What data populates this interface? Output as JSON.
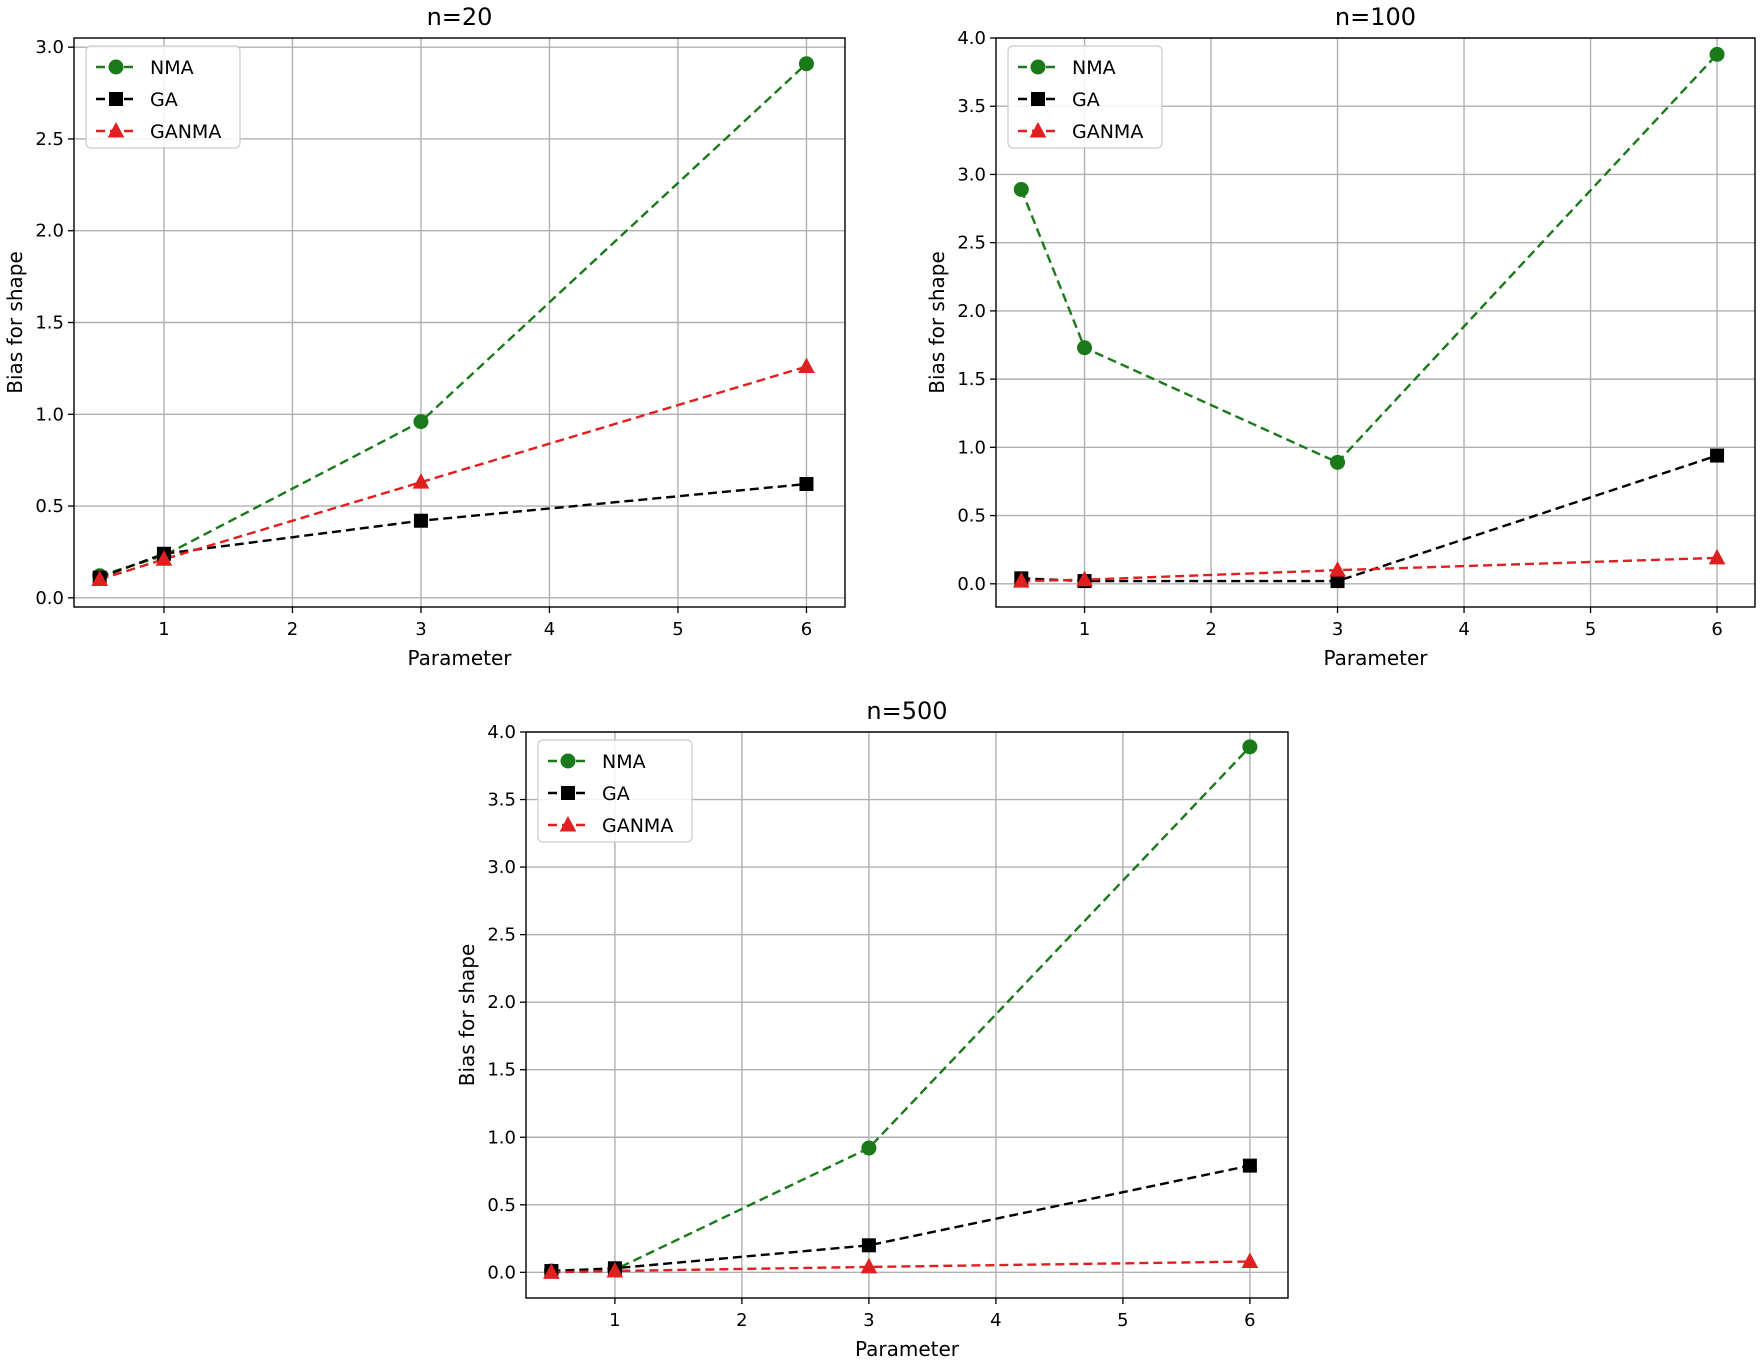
{
  "chart_data": [
    {
      "type": "line",
      "title": "n=20",
      "xlabel": "Parameter",
      "ylabel": "Bias for shape",
      "xlim": [
        0.3,
        6.3
      ],
      "ylim": [
        -0.05,
        3.05
      ],
      "xticks": [
        1,
        2,
        3,
        4,
        5,
        6
      ],
      "yticks": [
        "0.0",
        "0.5",
        "1.0",
        "1.5",
        "2.0",
        "2.5",
        "3.0"
      ],
      "grid": true,
      "legend_position": "top-left",
      "x": [
        0.5,
        1,
        3,
        6
      ],
      "series": [
        {
          "name": "NMA",
          "color": "#1a7a1a",
          "marker": "circle",
          "values": [
            0.12,
            0.23,
            0.96,
            2.91
          ]
        },
        {
          "name": "GA",
          "color": "#000000",
          "marker": "square",
          "values": [
            0.11,
            0.24,
            0.42,
            0.62
          ]
        },
        {
          "name": "GANMA",
          "color": "#e02020",
          "marker": "triangle",
          "values": [
            0.1,
            0.21,
            0.63,
            1.26
          ]
        }
      ]
    },
    {
      "type": "line",
      "title": "n=100",
      "xlabel": "Parameter",
      "ylabel": "Bias for shape",
      "xlim": [
        0.3,
        6.3
      ],
      "ylim": [
        -0.17,
        4.0
      ],
      "xticks": [
        1,
        2,
        3,
        4,
        5,
        6
      ],
      "yticks": [
        "0.0",
        "0.5",
        "1.0",
        "1.5",
        "2.0",
        "2.5",
        "3.0",
        "3.5",
        "4.0"
      ],
      "grid": true,
      "legend_position": "top-left",
      "x": [
        0.5,
        1,
        3,
        6
      ],
      "series": [
        {
          "name": "NMA",
          "color": "#1a7a1a",
          "marker": "circle",
          "values": [
            2.89,
            1.73,
            0.89,
            3.88
          ]
        },
        {
          "name": "GA",
          "color": "#000000",
          "marker": "square",
          "values": [
            0.04,
            0.02,
            0.02,
            0.94
          ]
        },
        {
          "name": "GANMA",
          "color": "#e02020",
          "marker": "triangle",
          "values": [
            0.02,
            0.03,
            0.1,
            0.19
          ]
        }
      ]
    },
    {
      "type": "line",
      "title": "n=500",
      "xlabel": "Parameter",
      "ylabel": "Bias for shape",
      "xlim": [
        0.3,
        6.3
      ],
      "ylim": [
        -0.19,
        4.0
      ],
      "xticks": [
        1,
        2,
        3,
        4,
        5,
        6
      ],
      "yticks": [
        "0.0",
        "0.5",
        "1.0",
        "1.5",
        "2.0",
        "2.5",
        "3.0",
        "3.5",
        "4.0"
      ],
      "grid": true,
      "legend_position": "top-left",
      "x": [
        0.5,
        1,
        3,
        6
      ],
      "series": [
        {
          "name": "NMA",
          "color": "#1a7a1a",
          "marker": "circle",
          "values": [
            0.01,
            0.02,
            0.92,
            3.89
          ]
        },
        {
          "name": "GA",
          "color": "#000000",
          "marker": "square",
          "values": [
            0.01,
            0.03,
            0.2,
            0.79
          ]
        },
        {
          "name": "GANMA",
          "color": "#e02020",
          "marker": "triangle",
          "values": [
            0.0,
            0.01,
            0.04,
            0.08
          ]
        }
      ]
    }
  ]
}
